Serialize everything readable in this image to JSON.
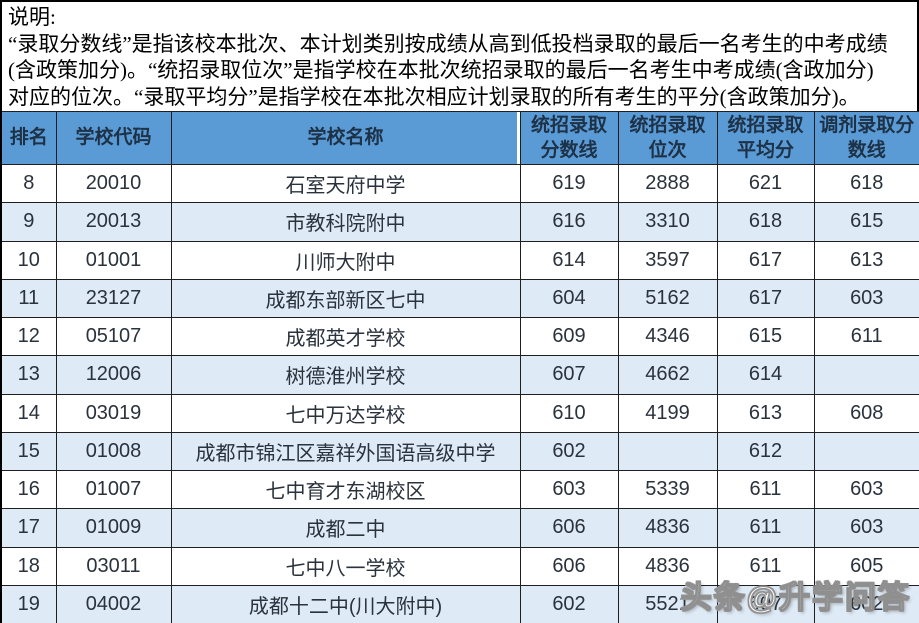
{
  "notes": {
    "lines": [
      "说明:",
      "“录取分数线”是指该校本批次、本计划类别按成绩从高到低投档录取的最后一名考生的中考成绩",
      "(含政策加分)。“统招录取位次”是指学校在本批次统招录取的最后一名考生中考成绩(含政加分)",
      "对应的位次。“录取平均分”是指学校在本批次相应计划录取的所有考生的平分(含政策加分)。"
    ]
  },
  "table": {
    "headers": [
      "排名",
      "学校代码",
      "学校名称",
      "统招录取分数线",
      "统招录取位次",
      "统招录取平均分",
      "调剂录取分数线"
    ],
    "rows": [
      [
        "8",
        "20010",
        "石室天府中学",
        "619",
        "2888",
        "621",
        "618"
      ],
      [
        "9",
        "20013",
        "市教科院附中",
        "616",
        "3310",
        "618",
        "615"
      ],
      [
        "10",
        "01001",
        "川师大附中",
        "614",
        "3597",
        "617",
        "613"
      ],
      [
        "11",
        "23127",
        "成都东部新区七中",
        "604",
        "5162",
        "617",
        "603"
      ],
      [
        "12",
        "05107",
        "成都英才学校",
        "609",
        "4346",
        "615",
        "611"
      ],
      [
        "13",
        "12006",
        "树德淮州学校",
        "607",
        "4662",
        "614",
        ""
      ],
      [
        "14",
        "03019",
        "七中万达学校",
        "610",
        "4199",
        "613",
        "608"
      ],
      [
        "15",
        "01008",
        "成都市锦江区嘉祥外国语高级中学",
        "602",
        "",
        "612",
        ""
      ],
      [
        "16",
        "01007",
        "七中育才东湖校区",
        "603",
        "5339",
        "611",
        "603"
      ],
      [
        "17",
        "01009",
        "成都二中",
        "606",
        "4836",
        "611",
        "603"
      ],
      [
        "18",
        "03011",
        "七中八一学校",
        "606",
        "4836",
        "611",
        "605"
      ],
      [
        "19",
        "04002",
        "成都十二中(川大附中)",
        "602",
        "5521",
        "607",
        "602"
      ]
    ]
  },
  "watermark": {
    "text": "头条@升学问答"
  },
  "colors": {
    "header_bg": "#5b9bd5",
    "band_bg": "#deeaf6",
    "header_text": "#1d3147",
    "border": "#1f1f1f",
    "watermark_fill": "#ffffff",
    "watermark_outline": "#8f8f8f"
  }
}
